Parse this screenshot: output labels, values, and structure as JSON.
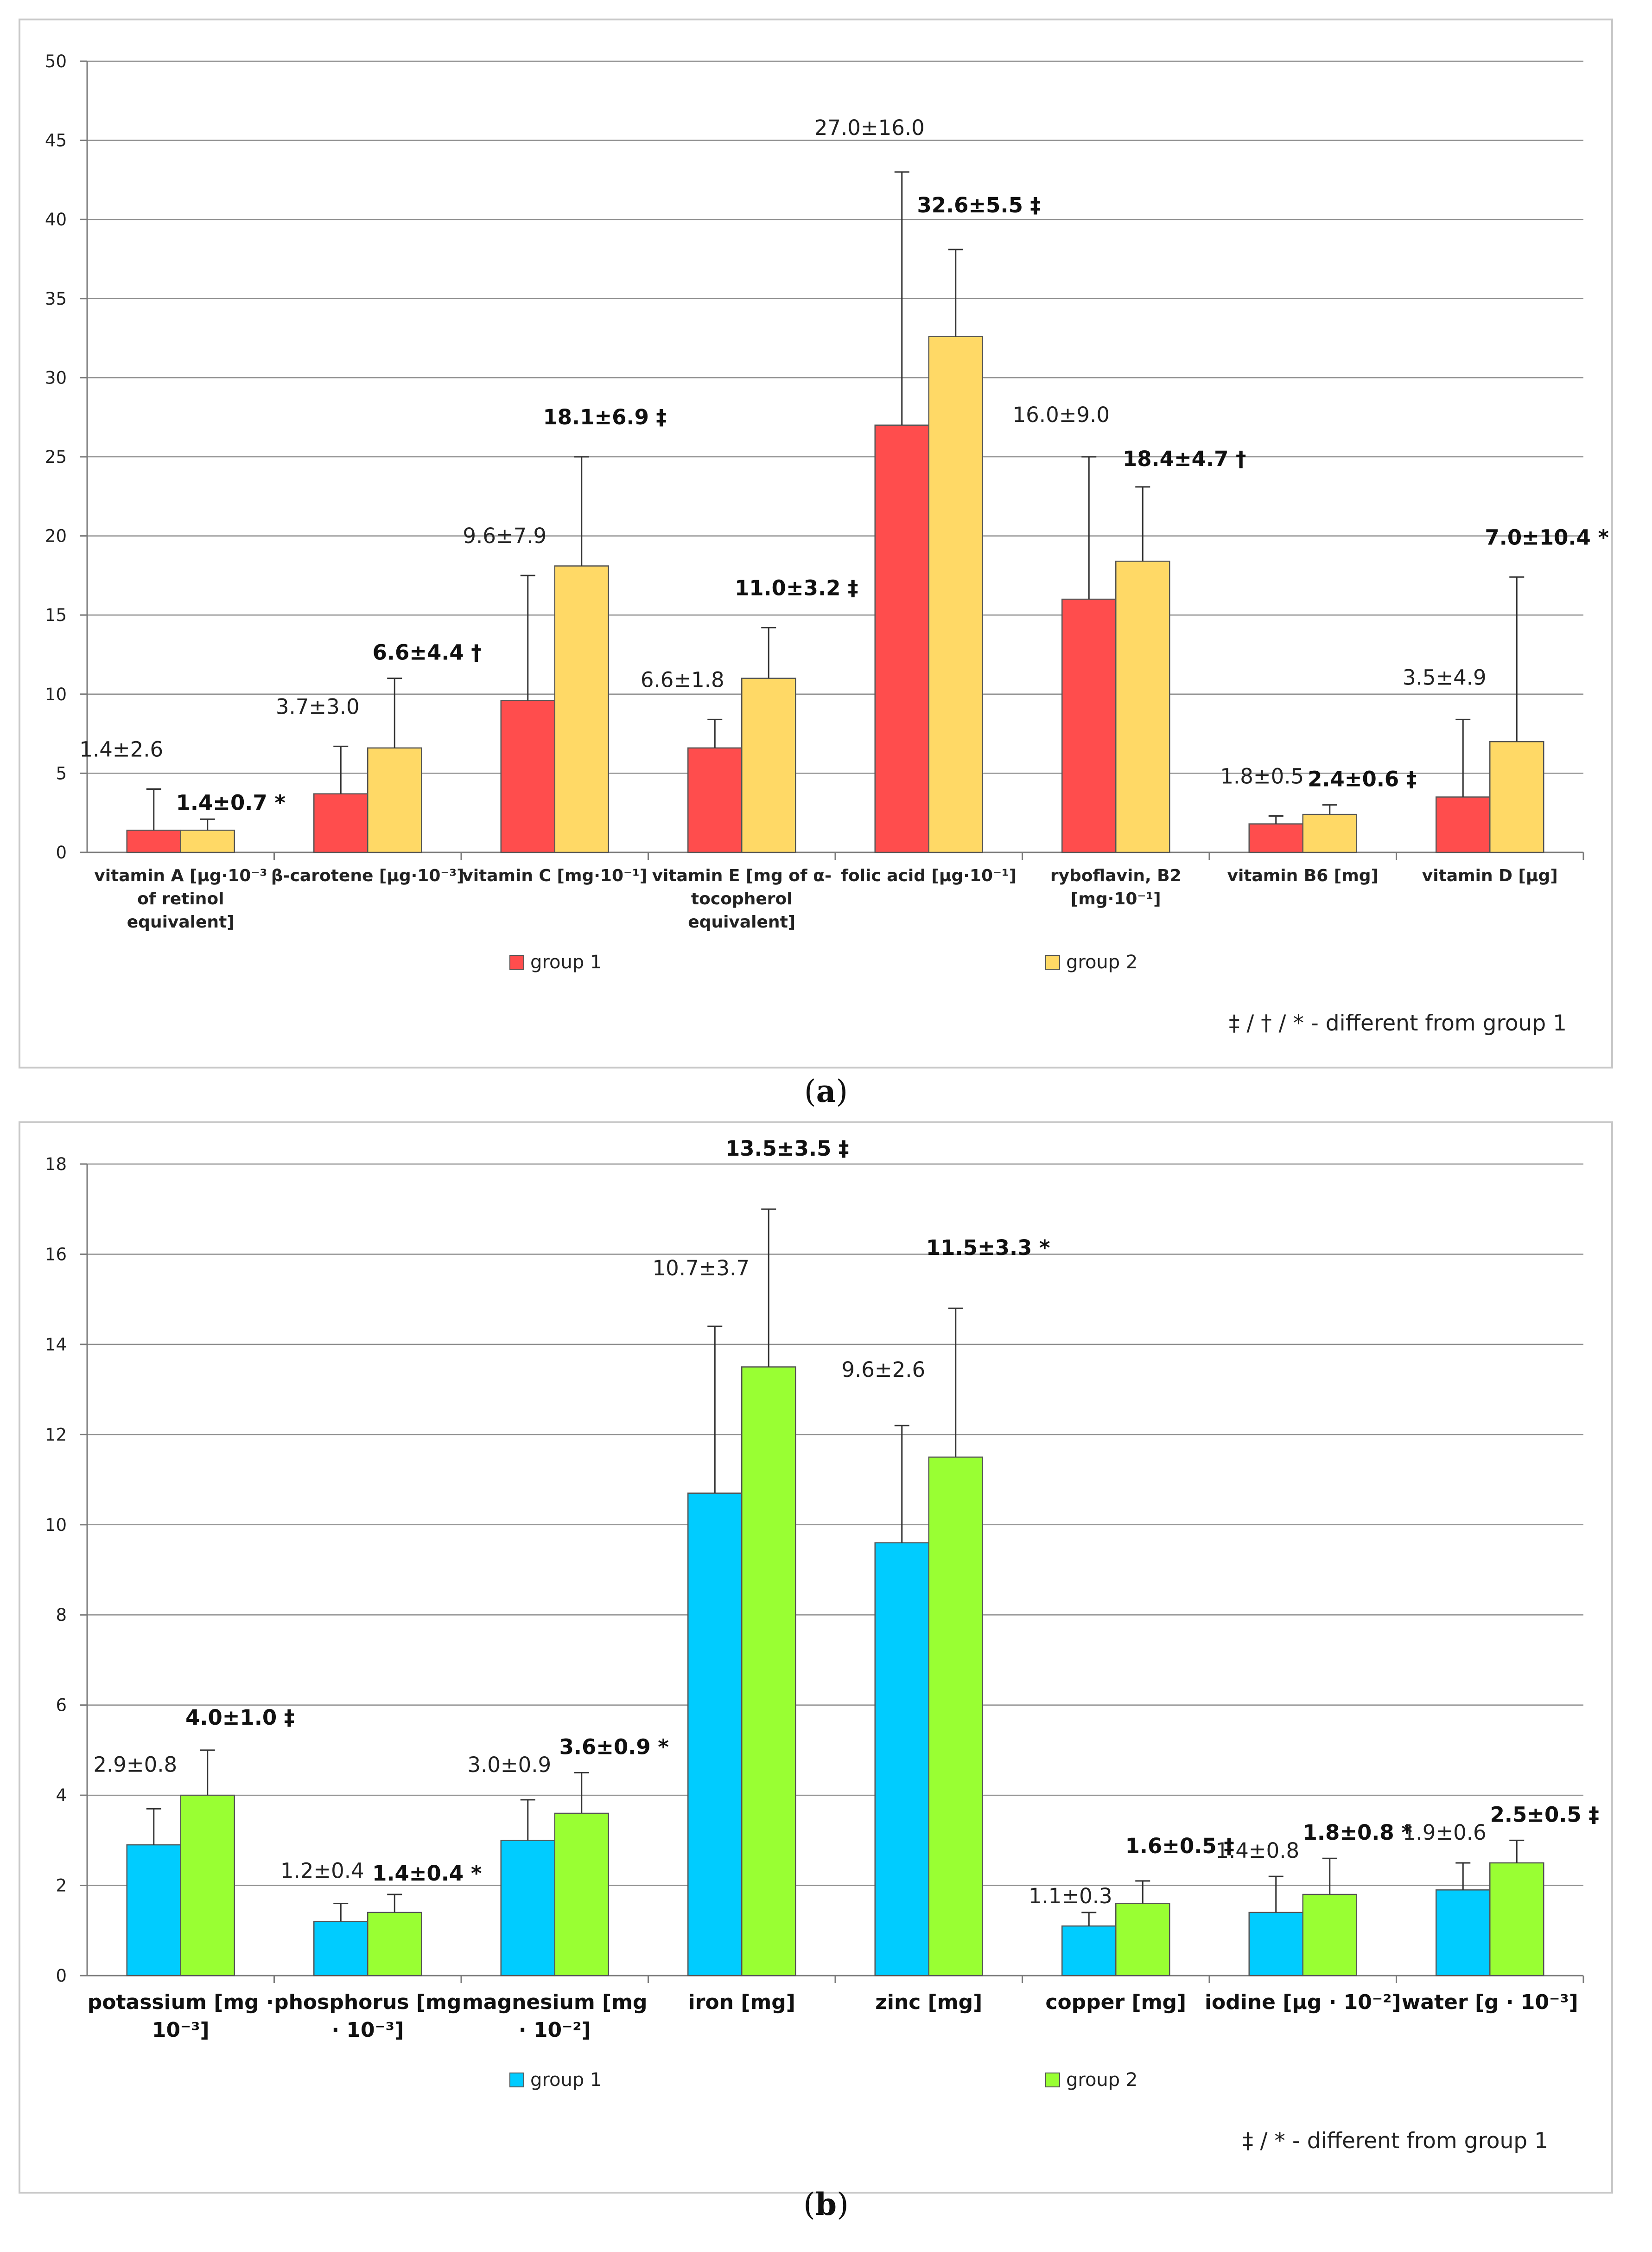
{
  "chart_data": [
    {
      "id": "a",
      "type": "bar",
      "caption": "(a)",
      "ylim": [
        0,
        50
      ],
      "yticks": [
        0,
        5,
        10,
        15,
        20,
        25,
        30,
        35,
        40,
        45,
        50
      ],
      "grid": true,
      "categories": [
        [
          "vitamin A [µg·10⁻³",
          "of retinol",
          "equivalent]"
        ],
        [
          "β-carotene [µg·10⁻³]"
        ],
        [
          "vitamin C [mg·10⁻¹]"
        ],
        [
          "vitamin E [mg of α-",
          "tocopherol",
          "equivalent]"
        ],
        [
          "folic acid [µg·10⁻¹]"
        ],
        [
          "ryboflavin, B2",
          "[mg·10⁻¹]"
        ],
        [
          "vitamin B6 [mg]"
        ],
        [
          "vitamin D [µg]"
        ]
      ],
      "series": [
        {
          "name": "group 1",
          "color": "#ff4d4d",
          "values": [
            1.4,
            3.7,
            9.6,
            6.6,
            27.0,
            16.0,
            1.8,
            3.5
          ],
          "errors": [
            2.6,
            3.0,
            7.9,
            1.8,
            16.0,
            9.0,
            0.5,
            4.9
          ],
          "labels": [
            "1.4±2.6",
            "3.7±3.0",
            "9.6±7.9",
            "6.6±1.8",
            "27.0±16.0",
            "16.0±9.0",
            "1.8±0.5",
            "3.5±4.9"
          ]
        },
        {
          "name": "group 2",
          "color": "#ffd966",
          "values": [
            1.4,
            6.6,
            18.1,
            11.0,
            32.6,
            18.4,
            2.4,
            7.0
          ],
          "errors": [
            0.7,
            4.4,
            6.9,
            3.2,
            5.5,
            4.7,
            0.6,
            10.4
          ],
          "labels": [
            "1.4±0.7 *",
            "6.6±4.4 †",
            "18.1±6.9 ‡",
            "11.0±3.2 ‡",
            "32.6±5.5 ‡",
            "18.4±4.7 †",
            "2.4±0.6 ‡",
            "7.0±10.4 *"
          ]
        }
      ],
      "footnote": "‡  / † / * - different from group  1"
    },
    {
      "id": "b",
      "type": "bar",
      "caption": "(b)",
      "ylim": [
        0,
        18
      ],
      "yticks": [
        0,
        2,
        4,
        6,
        8,
        10,
        12,
        14,
        16,
        18
      ],
      "grid": true,
      "categories": [
        [
          "potassium [mg ·",
          "10⁻³]"
        ],
        [
          "phosphorus [mg",
          "· 10⁻³]"
        ],
        [
          "magnesium [mg",
          "· 10⁻²]"
        ],
        [
          "iron [mg]"
        ],
        [
          "zinc [mg]"
        ],
        [
          "copper [mg]"
        ],
        [
          "iodine [µg · 10⁻²]"
        ],
        [
          "water [g · 10⁻³]"
        ]
      ],
      "series": [
        {
          "name": "group 1",
          "color": "#00ccff",
          "values": [
            2.9,
            1.2,
            3.0,
            10.7,
            9.6,
            1.1,
            1.4,
            1.9
          ],
          "errors": [
            0.8,
            0.4,
            0.9,
            3.7,
            2.6,
            0.3,
            0.8,
            0.6
          ],
          "labels": [
            "2.9±0.8",
            "1.2±0.4",
            "3.0±0.9",
            "10.7±3.7",
            "9.6±2.6",
            "1.1±0.3",
            "1.4±0.8",
            "1.9±0.6"
          ]
        },
        {
          "name": "group 2",
          "color": "#99ff33",
          "values": [
            4.0,
            1.4,
            3.6,
            13.5,
            11.5,
            1.6,
            1.8,
            2.5
          ],
          "errors": [
            1.0,
            0.4,
            0.9,
            3.5,
            3.3,
            0.5,
            0.8,
            0.5
          ],
          "labels": [
            "4.0±1.0 ‡",
            "1.4±0.4 *",
            "3.6±0.9 *",
            "13.5±3.5 ‡",
            "11.5±3.3 *",
            "1.6±0.5 ‡",
            "1.8±0.8 *",
            "2.5±0.5 ‡"
          ]
        }
      ],
      "footnote": "‡  /  * - different from group  1"
    }
  ]
}
